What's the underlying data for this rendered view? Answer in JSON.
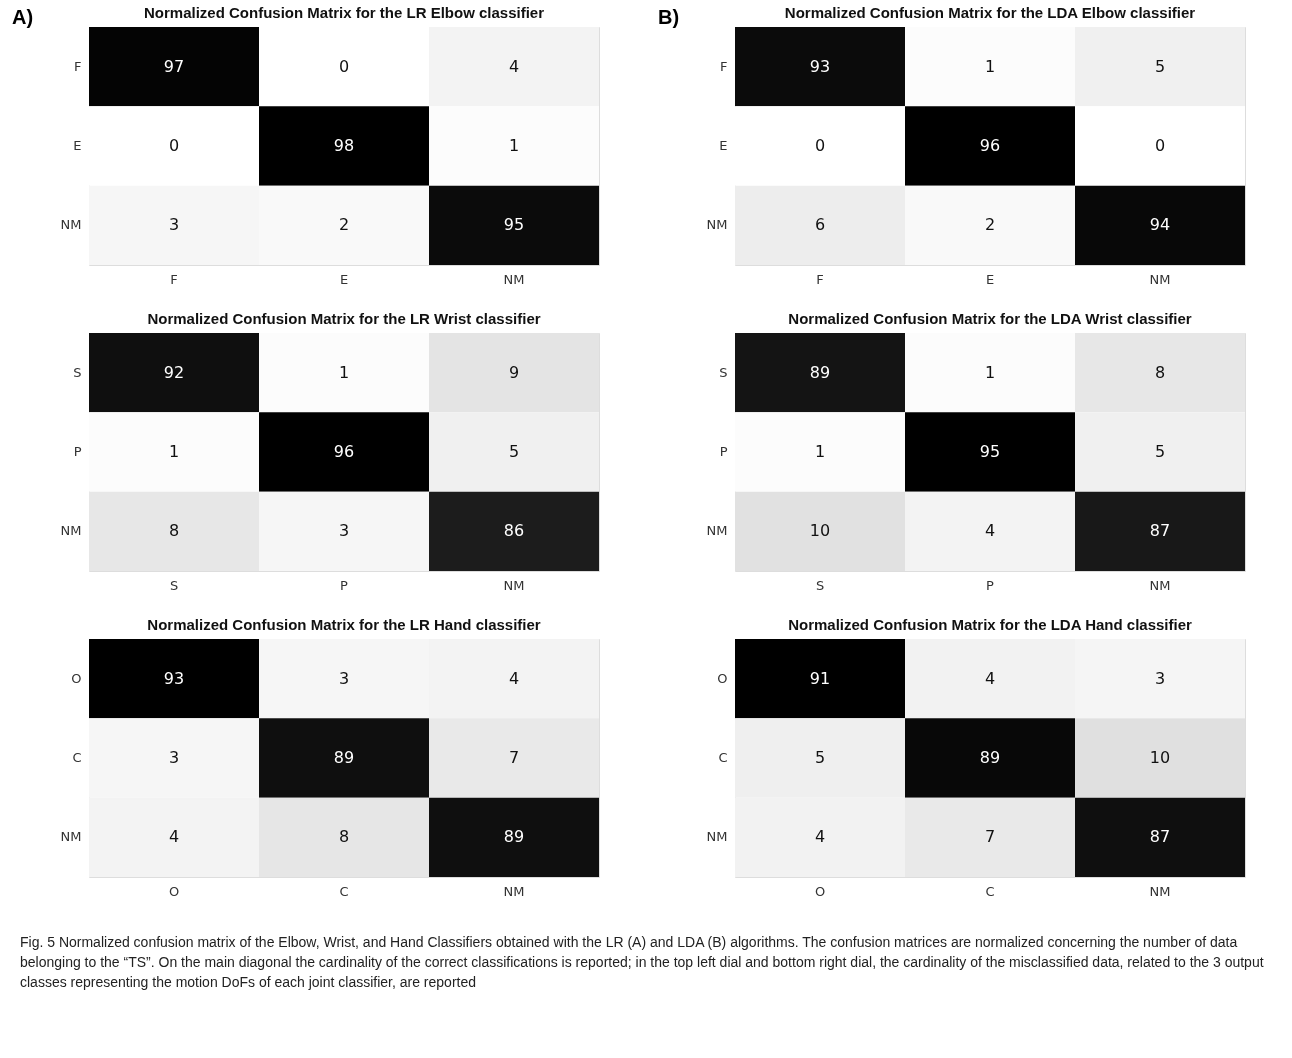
{
  "chart_data": [
    {
      "type": "heatmap",
      "title": "Normalized Confusion Matrix for the LR Elbow classifier",
      "categories": [
        "F",
        "E",
        "NM"
      ],
      "y_categories": [
        "F",
        "E",
        "NM"
      ],
      "cells": [
        [
          97,
          0,
          4
        ],
        [
          0,
          98,
          1
        ],
        [
          3,
          2,
          95
        ]
      ],
      "data_labels": true,
      "grid": false,
      "legend": false,
      "annotations": [
        "A)",
        "Fig. 5  Normalized confusion matrix of the Elbow, Wrist, and Hand Classifiers obtained with the LR (A) and LDA (B) algorithms. The confusion matrices are normalized concerning the number of data belonging to the “TS”. On the main diagonal the cardinality of the correct classifications is reported; in the top left dial and bottom right dial, the cardinality of the misclassified data, related to the 3 output classes representing the motion DoFs of each joint classifier, are reported"
      ]
    },
    {
      "type": "heatmap",
      "title": "Normalized Confusion Matrix for the LR Wrist classifier",
      "categories": [
        "S",
        "P",
        "NM"
      ],
      "y_categories": [
        "S",
        "P",
        "NM"
      ],
      "cells": [
        [
          92,
          1,
          9
        ],
        [
          1,
          96,
          5
        ],
        [
          8,
          3,
          86
        ]
      ],
      "data_labels": true,
      "grid": false,
      "legend": false
    },
    {
      "type": "heatmap",
      "title": "Normalized Confusion Matrix for the LR Hand classifier",
      "categories": [
        "O",
        "C",
        "NM"
      ],
      "y_categories": [
        "O",
        "C",
        "NM"
      ],
      "cells": [
        [
          93,
          3,
          4
        ],
        [
          3,
          89,
          7
        ],
        [
          4,
          8,
          89
        ]
      ],
      "data_labels": true,
      "grid": false,
      "legend": false
    },
    {
      "type": "heatmap",
      "title": "Normalized Confusion Matrix for the LDA Elbow classifier",
      "categories": [
        "F",
        "E",
        "NM"
      ],
      "y_categories": [
        "F",
        "E",
        "NM"
      ],
      "cells": [
        [
          93,
          1,
          5
        ],
        [
          0,
          96,
          0
        ],
        [
          6,
          2,
          94
        ]
      ],
      "data_labels": true,
      "grid": false,
      "legend": false,
      "annotations": [
        "B)"
      ]
    },
    {
      "type": "heatmap",
      "title": "Normalized Confusion Matrix for the LDA Wrist classifier",
      "categories": [
        "S",
        "P",
        "NM"
      ],
      "y_categories": [
        "S",
        "P",
        "NM"
      ],
      "cells": [
        [
          89,
          1,
          8
        ],
        [
          1,
          95,
          5
        ],
        [
          10,
          4,
          87
        ]
      ],
      "data_labels": true,
      "grid": false,
      "legend": false
    },
    {
      "type": "heatmap",
      "title": "Normalized Confusion Matrix for the LDA Hand classifier",
      "categories": [
        "O",
        "C",
        "NM"
      ],
      "y_categories": [
        "O",
        "C",
        "NM"
      ],
      "cells": [
        [
          91,
          4,
          3
        ],
        [
          5,
          89,
          10
        ],
        [
          4,
          7,
          87
        ]
      ],
      "data_labels": true,
      "grid": false,
      "legend": false
    }
  ]
}
